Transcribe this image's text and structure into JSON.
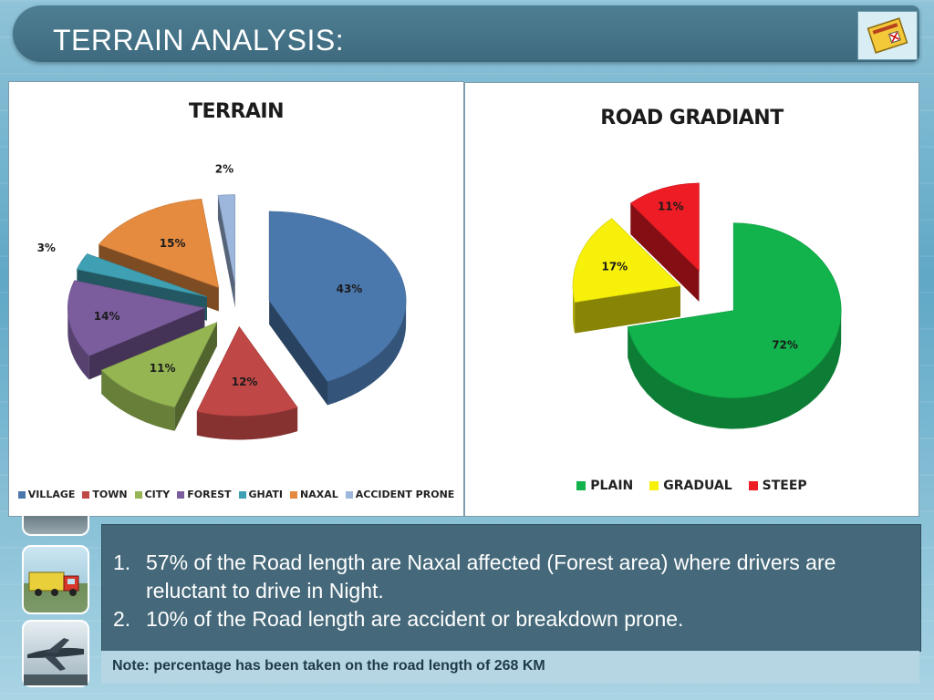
{
  "header": {
    "title": "TERRAIN ANALYSIS:",
    "icon": "report-icon"
  },
  "chart_data": [
    {
      "type": "pie",
      "title": "TERRAIN",
      "categories": [
        "VILLAGE",
        "TOWN",
        "CITY",
        "FOREST",
        "GHATI",
        "NAXAL",
        "ACCIDENT PRONE"
      ],
      "values": [
        43,
        12,
        11,
        14,
        3,
        15,
        2
      ],
      "value_labels": [
        "43%",
        "12%",
        "11%",
        "14%",
        "3%",
        "15%",
        "2%"
      ],
      "colors": [
        "#4a78ad",
        "#bf4745",
        "#95b553",
        "#7b5d9e",
        "#3fa0b3",
        "#e58b3f",
        "#9db6dc"
      ],
      "exploded": true,
      "style": "3d",
      "legend": "bottom"
    },
    {
      "type": "pie",
      "title": "ROAD GRADIANT",
      "categories": [
        "PLAIN",
        "GRADUAL",
        "STEEP"
      ],
      "values": [
        72,
        17,
        11
      ],
      "value_labels": [
        "72%",
        "17%",
        "11%"
      ],
      "colors": [
        "#12b34c",
        "#f7f00a",
        "#ee1c24"
      ],
      "exploded": true,
      "style": "3d",
      "legend": "bottom"
    }
  ],
  "points": [
    {
      "number": "1.",
      "text": "57% of the Road length are Naxal affected  (Forest area) where drivers are reluctant to drive in Night."
    },
    {
      "number": "2.",
      "text": "10% of the Road length are accident or breakdown prone."
    }
  ],
  "note": "Note: percentage has been taken on the road length of 268 KM",
  "side_thumbnails": [
    "road-thumbnail",
    "truck-thumbnail",
    "airplane-thumbnail"
  ]
}
